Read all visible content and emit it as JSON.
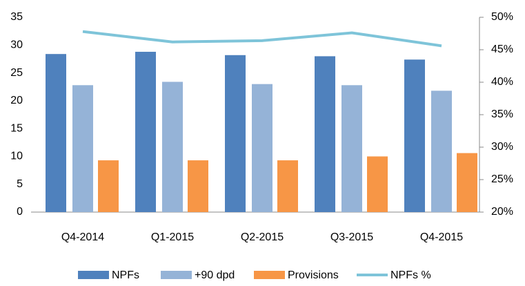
{
  "chart_data": {
    "type": "bar",
    "categories": [
      "Q4-2014",
      "Q1-2015",
      "Q2-2015",
      "Q3-2015",
      "Q4-2015"
    ],
    "series": [
      {
        "name": "NPFs",
        "color": "#4f81bd",
        "values": [
          28.4,
          28.8,
          28.2,
          28.0,
          27.4
        ]
      },
      {
        "name": "+90 dpd",
        "color": "#95b3d7",
        "values": [
          22.8,
          23.4,
          23.0,
          22.8,
          21.8
        ]
      },
      {
        "name": "Provisions",
        "color": "#f79646",
        "values": [
          9.3,
          9.3,
          9.3,
          10.0,
          10.6
        ]
      },
      {
        "name": "NPFs %",
        "color": "#7ec4d9",
        "type": "line",
        "axis": "y2",
        "values": [
          47.8,
          46.2,
          46.4,
          47.6,
          45.6
        ]
      }
    ],
    "ylim": [
      0,
      35
    ],
    "yticks": [
      0,
      5,
      10,
      15,
      20,
      25,
      30,
      35
    ],
    "y2lim": [
      20,
      50
    ],
    "y2ticks": [
      {
        "value": 20,
        "label": "20%"
      },
      {
        "value": 25,
        "label": "25%"
      },
      {
        "value": 30,
        "label": "30%"
      },
      {
        "value": 35,
        "label": "35%"
      },
      {
        "value": 40,
        "label": "40%"
      },
      {
        "value": 45,
        "label": "45%"
      },
      {
        "value": 50,
        "label": "50%"
      }
    ],
    "grid": false
  }
}
